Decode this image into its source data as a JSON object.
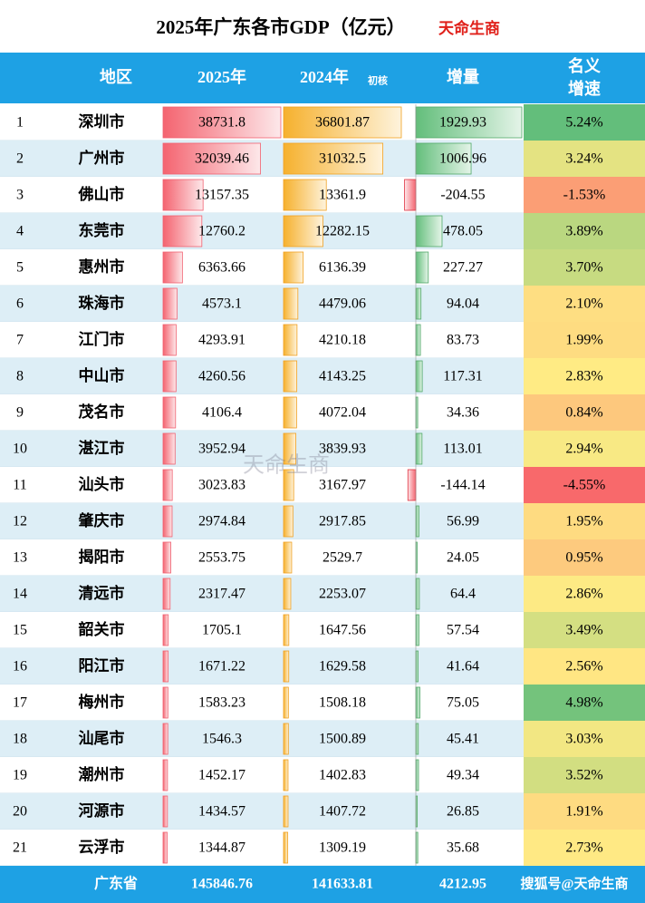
{
  "header": {
    "title": "2025年广东各市GDP（亿元）",
    "brand": "天命生商"
  },
  "watermark": "天命生商",
  "table": {
    "columns": [
      "地区",
      "2025年",
      "2024年",
      "增量",
      "名义增速"
    ],
    "column_note": "初核",
    "rows": [
      [
        1,
        "深圳市",
        38731.8,
        36801.87,
        1929.93,
        {
          "value": 5.24,
          "label": "5.24%"
        }
      ],
      [
        2,
        "广州市",
        32039.46,
        31032.5,
        1006.96,
        {
          "value": 3.24,
          "label": "3.24%"
        }
      ],
      [
        3,
        "佛山市",
        13157.35,
        13361.9,
        -204.55,
        {
          "value": -1.53,
          "label": "-1.53%"
        }
      ],
      [
        4,
        "东莞市",
        12760.2,
        12282.15,
        478.05,
        {
          "value": 3.89,
          "label": "3.89%"
        }
      ],
      [
        5,
        "惠州市",
        6363.66,
        6136.39,
        227.27,
        {
          "value": 3.7,
          "label": "3.70%"
        }
      ],
      [
        6,
        "珠海市",
        4573.1,
        4479.06,
        94.04,
        {
          "value": 2.1,
          "label": "2.10%"
        }
      ],
      [
        7,
        "江门市",
        4293.91,
        4210.18,
        83.73,
        {
          "value": 1.99,
          "label": "1.99%"
        }
      ],
      [
        8,
        "中山市",
        4260.56,
        4143.25,
        117.31,
        {
          "value": 2.83,
          "label": "2.83%"
        }
      ],
      [
        9,
        "茂名市",
        4106.4,
        4072.04,
        34.36,
        {
          "value": 0.84,
          "label": "0.84%"
        }
      ],
      [
        10,
        "湛江市",
        3952.94,
        3839.93,
        113.01,
        {
          "value": 2.94,
          "label": "2.94%"
        }
      ],
      [
        11,
        "汕头市",
        3023.83,
        3167.97,
        -144.14,
        {
          "value": -4.55,
          "label": "-4.55%"
        }
      ],
      [
        12,
        "肇庆市",
        2974.84,
        2917.85,
        56.99,
        {
          "value": 1.95,
          "label": "1.95%"
        }
      ],
      [
        13,
        "揭阳市",
        2553.75,
        2529.7,
        24.05,
        {
          "value": 0.95,
          "label": "0.95%"
        }
      ],
      [
        14,
        "清远市",
        2317.47,
        2253.07,
        64.4,
        {
          "value": 2.86,
          "label": "2.86%"
        }
      ],
      [
        15,
        "韶关市",
        1705.1,
        1647.56,
        57.54,
        {
          "value": 3.49,
          "label": "3.49%"
        }
      ],
      [
        16,
        "阳江市",
        1671.22,
        1629.58,
        41.64,
        {
          "value": 2.56,
          "label": "2.56%"
        }
      ],
      [
        17,
        "梅州市",
        1583.23,
        1508.18,
        75.05,
        {
          "value": 4.98,
          "label": "4.98%"
        }
      ],
      [
        18,
        "汕尾市",
        1546.3,
        1500.89,
        45.41,
        {
          "value": 3.03,
          "label": "3.03%"
        }
      ],
      [
        19,
        "潮州市",
        1452.17,
        1402.83,
        49.34,
        {
          "value": 3.52,
          "label": "3.52%"
        }
      ],
      [
        20,
        "河源市",
        1434.57,
        1407.72,
        26.85,
        {
          "value": 1.91,
          "label": "1.91%"
        }
      ],
      [
        21,
        "云浮市",
        1344.87,
        1309.19,
        35.68,
        {
          "value": 2.73,
          "label": "2.73%"
        }
      ]
    ],
    "total": [
      "广东省",
      145846.76,
      141633.81,
      4212.95
    ],
    "footer_note": "搜狐号@天命生商"
  }
}
